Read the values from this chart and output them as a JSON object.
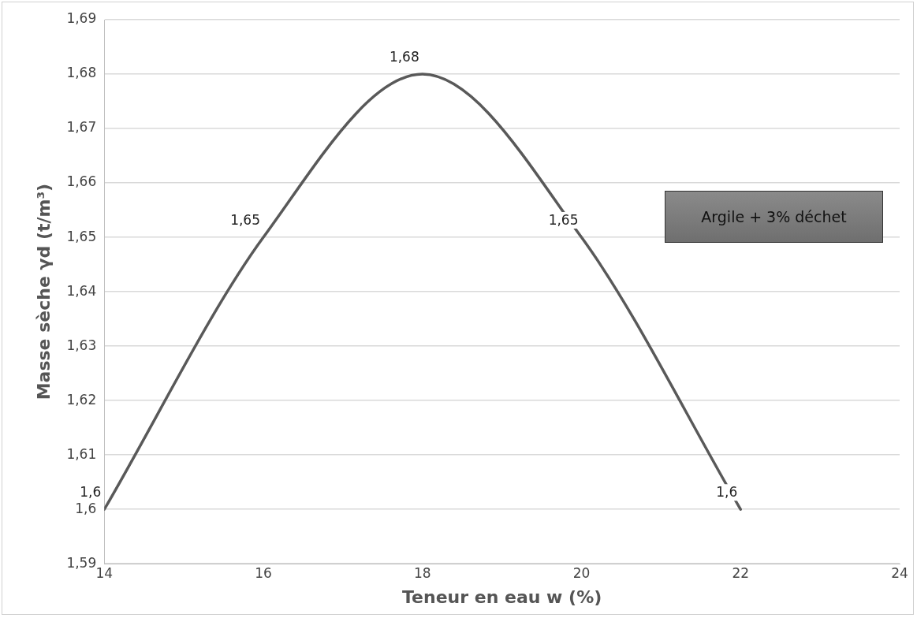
{
  "chart_data": {
    "type": "line",
    "xlabel": "Teneur en eau w (%)",
    "ylabel": "Masse sèche γd (t/m³)",
    "x": [
      14,
      16,
      18,
      20,
      22
    ],
    "series": [
      {
        "color": "#595959",
        "values": [
          1.6,
          1.65,
          1.68,
          1.65,
          1.6
        ],
        "value_labels": [
          "1,6",
          "1,65",
          "1,68",
          "1,65",
          "1,6"
        ]
      }
    ],
    "xlim": [
      14,
      24
    ],
    "xticks": [
      14,
      16,
      18,
      20,
      22,
      24
    ],
    "ylim": [
      1.59,
      1.69
    ],
    "yticks": [
      {
        "value": 1.59,
        "label": "1,59"
      },
      {
        "value": 1.6,
        "label": "1,6"
      },
      {
        "value": 1.61,
        "label": "1,61"
      },
      {
        "value": 1.62,
        "label": "1,62"
      },
      {
        "value": 1.63,
        "label": "1,63"
      },
      {
        "value": 1.64,
        "label": "1,64"
      },
      {
        "value": 1.65,
        "label": "1,65"
      },
      {
        "value": 1.66,
        "label": "1,66"
      },
      {
        "value": 1.67,
        "label": "1,67"
      },
      {
        "value": 1.68,
        "label": "1,68"
      },
      {
        "value": 1.69,
        "label": "1,69"
      }
    ],
    "grid": "y",
    "legend": false,
    "marker": "none",
    "line_style": "solid",
    "annotations": [
      "Argile + 3% déchet"
    ]
  }
}
